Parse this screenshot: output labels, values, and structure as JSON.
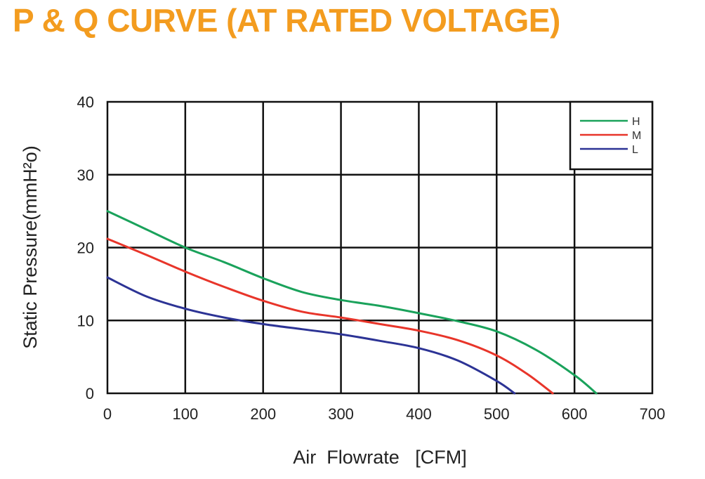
{
  "chart_data": {
    "type": "line",
    "title": "P & Q CURVE (AT RATED VOLTAGE)",
    "xlabel": "Air  Flowrate   [CFM]",
    "ylabel": "Static Pressure(mmH²o)",
    "xlim": [
      0,
      700
    ],
    "ylim": [
      0,
      40
    ],
    "xticks": [
      "0",
      "100",
      "200",
      "300",
      "400",
      "500",
      "600",
      "700"
    ],
    "yticks": [
      "0",
      "10",
      "20",
      "30",
      "40"
    ],
    "grid": true,
    "legend_position": "top-right",
    "colors": {
      "title": "#f39c1f",
      "grid": "#111111"
    },
    "series": [
      {
        "name": "H",
        "color": "#1aa25b",
        "x": [
          0,
          50,
          100,
          150,
          200,
          250,
          300,
          350,
          400,
          450,
          500,
          550,
          600,
          628
        ],
        "y": [
          25,
          22.5,
          20,
          18,
          15.8,
          13.9,
          12.8,
          12,
          11,
          9.9,
          8.5,
          6,
          2.5,
          0
        ]
      },
      {
        "name": "M",
        "color": "#e8352a",
        "x": [
          0,
          50,
          100,
          150,
          200,
          250,
          300,
          350,
          400,
          450,
          500,
          540,
          572
        ],
        "y": [
          21.2,
          19,
          16.7,
          14.6,
          12.7,
          11.2,
          10.4,
          9.5,
          8.6,
          7.3,
          5.2,
          2.6,
          0
        ]
      },
      {
        "name": "L",
        "color": "#2c3395",
        "x": [
          0,
          50,
          100,
          150,
          200,
          250,
          300,
          350,
          400,
          450,
          500,
          523
        ],
        "y": [
          15.9,
          13.3,
          11.6,
          10.4,
          9.5,
          8.8,
          8.1,
          7.2,
          6.2,
          4.5,
          1.7,
          0
        ]
      }
    ]
  }
}
